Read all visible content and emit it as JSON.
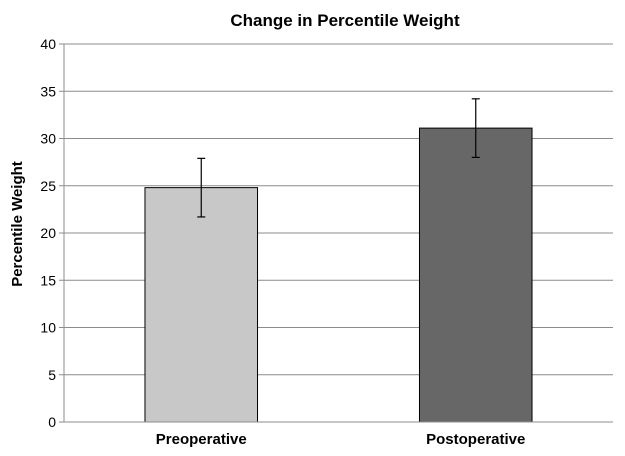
{
  "chart_data": {
    "type": "bar",
    "title": "Change in Percentile Weight",
    "xlabel": "",
    "ylabel": "Percentile Weight",
    "categories": [
      "Preoperative",
      "Postoperative"
    ],
    "values": [
      24.8,
      31.1
    ],
    "error_bars": [
      3.1,
      3.1
    ],
    "bar_colors": [
      "#c8c8c8",
      "#676767"
    ],
    "bar_outline_color": "#000000",
    "ylim": [
      0,
      40
    ],
    "yticks": [
      0,
      5,
      10,
      15,
      20,
      25,
      30,
      35,
      40
    ],
    "grid": true,
    "legend": "none"
  }
}
